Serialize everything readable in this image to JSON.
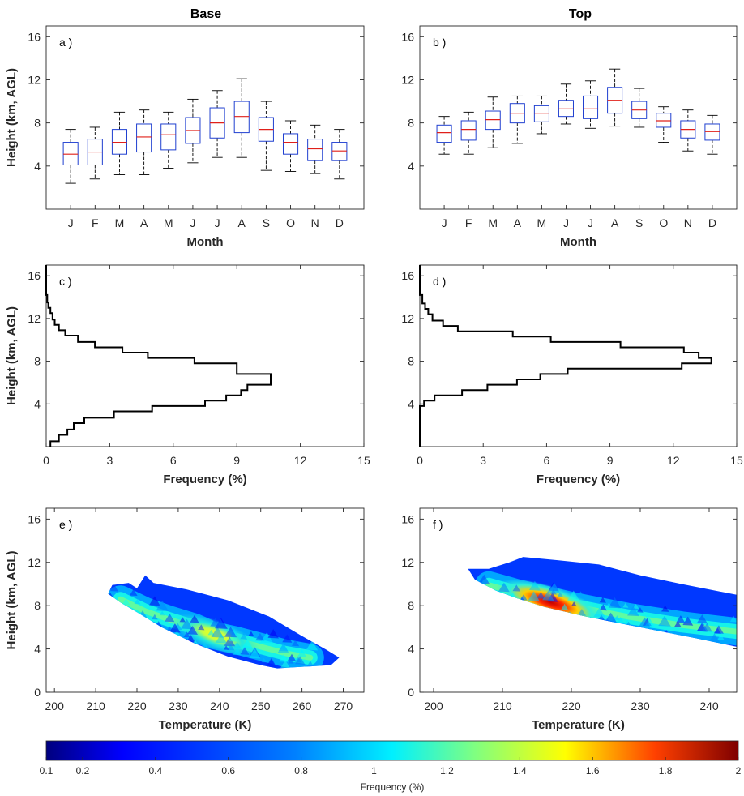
{
  "columns": {
    "left_title": "Base",
    "right_title": "Top"
  },
  "colors": {
    "box": "#1f3fd0",
    "median": "#e0201a",
    "whisker": "#000000",
    "axis": "#262626"
  },
  "colorbar": {
    "label": "Frequency (%)",
    "range": [
      0.1,
      2
    ],
    "ticks": [
      "0.1",
      "0.2",
      "0.4",
      "0.6",
      "0.8",
      "1",
      "1.2",
      "1.4",
      "1.6",
      "1.8",
      "2"
    ],
    "colormap": "jet"
  },
  "chart_data": [
    {
      "type": "box",
      "panel_label": "a )",
      "categories": [
        "J",
        "F",
        "M",
        "A",
        "M",
        "J",
        "J",
        "A",
        "S",
        "O",
        "N",
        "D"
      ],
      "xlabel": "Month",
      "ylabel": "Height (km, AGL)",
      "ylim": [
        0,
        17
      ],
      "yticks": [
        "4",
        "8",
        "12",
        "16"
      ],
      "boxes": [
        {
          "low": 2.4,
          "q1": 4.1,
          "median": 5.1,
          "q3": 6.2,
          "high": 7.4
        },
        {
          "low": 2.8,
          "q1": 4.1,
          "median": 5.3,
          "q3": 6.5,
          "high": 7.6
        },
        {
          "low": 3.2,
          "q1": 5.1,
          "median": 6.2,
          "q3": 7.4,
          "high": 9.0
        },
        {
          "low": 3.2,
          "q1": 5.3,
          "median": 6.7,
          "q3": 7.9,
          "high": 9.2
        },
        {
          "low": 3.8,
          "q1": 5.5,
          "median": 6.9,
          "q3": 7.9,
          "high": 9.0
        },
        {
          "low": 4.3,
          "q1": 6.1,
          "median": 7.3,
          "q3": 8.5,
          "high": 10.2
        },
        {
          "low": 4.8,
          "q1": 6.6,
          "median": 8.0,
          "q3": 9.4,
          "high": 11.0
        },
        {
          "low": 4.8,
          "q1": 7.1,
          "median": 8.6,
          "q3": 10.0,
          "high": 12.1
        },
        {
          "low": 3.6,
          "q1": 6.3,
          "median": 7.4,
          "q3": 8.5,
          "high": 10.0
        },
        {
          "low": 3.5,
          "q1": 5.1,
          "median": 6.2,
          "q3": 7.0,
          "high": 8.2
        },
        {
          "low": 3.3,
          "q1": 4.5,
          "median": 5.6,
          "q3": 6.5,
          "high": 7.8
        },
        {
          "low": 2.8,
          "q1": 4.5,
          "median": 5.4,
          "q3": 6.2,
          "high": 7.4
        }
      ]
    },
    {
      "type": "box",
      "panel_label": "b )",
      "categories": [
        "J",
        "F",
        "M",
        "A",
        "M",
        "J",
        "J",
        "A",
        "S",
        "O",
        "N",
        "D"
      ],
      "xlabel": "Month",
      "ylabel": "",
      "ylim": [
        0,
        17
      ],
      "yticks": [
        "4",
        "8",
        "12",
        "16"
      ],
      "boxes": [
        {
          "low": 5.1,
          "q1": 6.2,
          "median": 7.1,
          "q3": 7.8,
          "high": 8.6
        },
        {
          "low": 5.1,
          "q1": 6.4,
          "median": 7.4,
          "q3": 8.2,
          "high": 9.0
        },
        {
          "low": 5.7,
          "q1": 7.4,
          "median": 8.3,
          "q3": 9.1,
          "high": 10.4
        },
        {
          "low": 6.1,
          "q1": 8.0,
          "median": 8.9,
          "q3": 9.8,
          "high": 10.5
        },
        {
          "low": 7.0,
          "q1": 8.1,
          "median": 8.9,
          "q3": 9.6,
          "high": 10.5
        },
        {
          "low": 7.9,
          "q1": 8.6,
          "median": 9.3,
          "q3": 10.1,
          "high": 11.6
        },
        {
          "low": 7.5,
          "q1": 8.4,
          "median": 9.3,
          "q3": 10.5,
          "high": 11.9
        },
        {
          "low": 7.7,
          "q1": 8.9,
          "median": 10.1,
          "q3": 11.3,
          "high": 13.0
        },
        {
          "low": 7.6,
          "q1": 8.4,
          "median": 9.2,
          "q3": 10.0,
          "high": 11.2
        },
        {
          "low": 6.2,
          "q1": 7.6,
          "median": 8.2,
          "q3": 8.9,
          "high": 9.5
        },
        {
          "low": 5.4,
          "q1": 6.6,
          "median": 7.4,
          "q3": 8.2,
          "high": 9.2
        },
        {
          "low": 5.1,
          "q1": 6.4,
          "median": 7.2,
          "q3": 7.9,
          "high": 8.7
        }
      ]
    },
    {
      "type": "line",
      "panel_label": "c )",
      "xlabel": "Frequency (%)",
      "ylabel": "Height (km, AGL)",
      "xlim": [
        0,
        15
      ],
      "ylim": [
        0,
        17
      ],
      "xticks": [
        "0",
        "3",
        "6",
        "9",
        "12",
        "15"
      ],
      "yticks": [
        "4",
        "8",
        "12",
        "16"
      ],
      "step_profile": [
        [
          0.2,
          0.0
        ],
        [
          0.2,
          0.5
        ],
        [
          0.6,
          0.5
        ],
        [
          0.6,
          1.1
        ],
        [
          1.0,
          1.1
        ],
        [
          1.0,
          1.6
        ],
        [
          1.3,
          1.6
        ],
        [
          1.3,
          2.2
        ],
        [
          1.8,
          2.2
        ],
        [
          1.8,
          2.7
        ],
        [
          3.2,
          2.7
        ],
        [
          3.2,
          3.3
        ],
        [
          5.0,
          3.3
        ],
        [
          5.0,
          3.8
        ],
        [
          7.5,
          3.8
        ],
        [
          7.5,
          4.3
        ],
        [
          8.5,
          4.3
        ],
        [
          8.5,
          4.8
        ],
        [
          9.2,
          4.8
        ],
        [
          9.2,
          5.3
        ],
        [
          9.5,
          5.3
        ],
        [
          9.5,
          5.8
        ],
        [
          10.6,
          5.8
        ],
        [
          10.6,
          6.8
        ],
        [
          9.0,
          6.8
        ],
        [
          9.0,
          7.8
        ],
        [
          7.0,
          7.8
        ],
        [
          7.0,
          8.3
        ],
        [
          4.8,
          8.3
        ],
        [
          4.8,
          8.8
        ],
        [
          3.6,
          8.8
        ],
        [
          3.6,
          9.3
        ],
        [
          2.3,
          9.3
        ],
        [
          2.3,
          9.8
        ],
        [
          1.5,
          9.8
        ],
        [
          1.5,
          10.4
        ],
        [
          0.9,
          10.4
        ],
        [
          0.9,
          10.9
        ],
        [
          0.6,
          10.9
        ],
        [
          0.6,
          11.4
        ],
        [
          0.4,
          11.4
        ],
        [
          0.4,
          11.9
        ],
        [
          0.3,
          11.9
        ],
        [
          0.3,
          12.5
        ],
        [
          0.2,
          12.5
        ],
        [
          0.2,
          13.0
        ],
        [
          0.1,
          13.0
        ],
        [
          0.1,
          13.5
        ],
        [
          0.05,
          13.5
        ],
        [
          0.05,
          14.2
        ],
        [
          0.0,
          14.2
        ],
        [
          0.0,
          17.0
        ]
      ]
    },
    {
      "type": "line",
      "panel_label": "d )",
      "xlabel": "Frequency (%)",
      "ylabel": "",
      "xlim": [
        0,
        15
      ],
      "ylim": [
        0,
        17
      ],
      "xticks": [
        "0",
        "3",
        "6",
        "9",
        "12",
        "15"
      ],
      "yticks": [
        "4",
        "8",
        "12",
        "16"
      ],
      "step_profile": [
        [
          0.0,
          0.0
        ],
        [
          0.0,
          3.8
        ],
        [
          0.2,
          3.8
        ],
        [
          0.2,
          4.3
        ],
        [
          0.7,
          4.3
        ],
        [
          0.7,
          4.8
        ],
        [
          2.0,
          4.8
        ],
        [
          2.0,
          5.3
        ],
        [
          3.2,
          5.3
        ],
        [
          3.2,
          5.8
        ],
        [
          4.6,
          5.8
        ],
        [
          4.6,
          6.3
        ],
        [
          5.7,
          6.3
        ],
        [
          5.7,
          6.8
        ],
        [
          7.0,
          6.8
        ],
        [
          7.0,
          7.3
        ],
        [
          12.4,
          7.3
        ],
        [
          12.4,
          7.8
        ],
        [
          13.8,
          7.8
        ],
        [
          13.8,
          8.3
        ],
        [
          13.2,
          8.3
        ],
        [
          13.2,
          8.8
        ],
        [
          12.5,
          8.8
        ],
        [
          12.5,
          9.3
        ],
        [
          9.5,
          9.3
        ],
        [
          9.5,
          9.8
        ],
        [
          6.2,
          9.8
        ],
        [
          6.2,
          10.3
        ],
        [
          4.4,
          10.3
        ],
        [
          4.4,
          10.8
        ],
        [
          1.8,
          10.8
        ],
        [
          1.8,
          11.3
        ],
        [
          1.1,
          11.3
        ],
        [
          1.1,
          11.8
        ],
        [
          0.6,
          11.8
        ],
        [
          0.6,
          12.4
        ],
        [
          0.4,
          12.4
        ],
        [
          0.4,
          12.9
        ],
        [
          0.25,
          12.9
        ],
        [
          0.25,
          13.4
        ],
        [
          0.12,
          13.4
        ],
        [
          0.12,
          14.2
        ],
        [
          0.0,
          14.2
        ],
        [
          0.0,
          17.0
        ]
      ]
    },
    {
      "type": "heatmap",
      "panel_label": "e )",
      "xlabel": "Temperature (K)",
      "ylabel": "Height (km, AGL)",
      "xlim": [
        198,
        275
      ],
      "ylim": [
        0,
        17
      ],
      "xticks": [
        "200",
        "210",
        "220",
        "230",
        "240",
        "250",
        "260",
        "270"
      ],
      "yticks": [
        "0",
        "4",
        "8",
        "12",
        "16"
      ],
      "envelope": [
        [
          214,
          9.9
        ],
        [
          218,
          10.1
        ],
        [
          220,
          9.6
        ],
        [
          222,
          10.8
        ],
        [
          224,
          10.1
        ],
        [
          232,
          9.5
        ],
        [
          242,
          8.5
        ],
        [
          252,
          7.0
        ],
        [
          260,
          5.2
        ],
        [
          266,
          3.9
        ],
        [
          269,
          3.2
        ],
        [
          267,
          2.5
        ],
        [
          258,
          2.3
        ],
        [
          254,
          2.2
        ],
        [
          250,
          2.5
        ],
        [
          242,
          3.3
        ],
        [
          234,
          4.5
        ],
        [
          226,
          6.0
        ],
        [
          220,
          7.4
        ],
        [
          216,
          8.3
        ],
        [
          213,
          9.1
        ]
      ],
      "ridge": [
        [
          216,
          8.6
        ],
        [
          222,
          7.5
        ],
        [
          228,
          6.7
        ],
        [
          234,
          6.0
        ],
        [
          238,
          5.3
        ],
        [
          244,
          4.8
        ],
        [
          250,
          4.2
        ],
        [
          256,
          3.6
        ],
        [
          262,
          3.2
        ]
      ],
      "peak": {
        "t": 239,
        "h": 5.3,
        "value": 1.35
      },
      "max_value": 1.4
    },
    {
      "type": "heatmap",
      "panel_label": "f )",
      "xlabel": "Temperature (K)",
      "ylabel": "",
      "xlim": [
        198,
        244
      ],
      "ylim": [
        0,
        17
      ],
      "xticks": [
        "200",
        "210",
        "220",
        "230",
        "240"
      ],
      "yticks": [
        "0",
        "4",
        "8",
        "12",
        "16"
      ],
      "envelope": [
        [
          205,
          11.4
        ],
        [
          208,
          11.4
        ],
        [
          211,
          12.0
        ],
        [
          213,
          12.5
        ],
        [
          218,
          12.2
        ],
        [
          224,
          11.8
        ],
        [
          230,
          10.8
        ],
        [
          236,
          10.0
        ],
        [
          244,
          9.0
        ],
        [
          244,
          4.2
        ],
        [
          238,
          5.0
        ],
        [
          230,
          6.0
        ],
        [
          222,
          7.0
        ],
        [
          216,
          7.9
        ],
        [
          212,
          8.7
        ],
        [
          209,
          9.4
        ],
        [
          206,
          10.4
        ]
      ],
      "ridge": [
        [
          208,
          9.9
        ],
        [
          212,
          9.2
        ],
        [
          216,
          8.6
        ],
        [
          220,
          8.0
        ],
        [
          224,
          7.5
        ],
        [
          228,
          7.0
        ],
        [
          232,
          6.6
        ],
        [
          236,
          6.2
        ],
        [
          240,
          5.9
        ],
        [
          244,
          5.6
        ]
      ],
      "peak": {
        "t": 217,
        "h": 8.3,
        "value": 1.85
      },
      "max_value": 1.9
    }
  ]
}
